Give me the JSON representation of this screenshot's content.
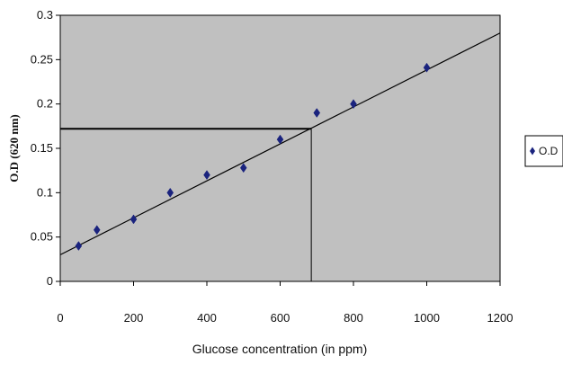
{
  "chart_data": {
    "type": "scatter",
    "xlabel": "Glucose concentration (in ppm)",
    "ylabel": "O.D (620 nm)",
    "xlim": [
      0,
      1200
    ],
    "ylim": [
      0,
      0.3
    ],
    "x_ticks": [
      "0",
      "200",
      "400",
      "600",
      "800",
      "1000",
      "1200"
    ],
    "y_ticks": [
      "0",
      "0.05",
      "0.1",
      "0.15",
      "0.2",
      "0.25",
      "0.3"
    ],
    "legend_position": "right",
    "plot_background": "#c0c0c0",
    "grid": false,
    "series": [
      {
        "name": "O.D",
        "marker": "diamond",
        "color": "#1a237e",
        "x": [
          50,
          100,
          200,
          300,
          400,
          500,
          600,
          700,
          800,
          1000
        ],
        "y": [
          0.04,
          0.058,
          0.07,
          0.1,
          0.12,
          0.128,
          0.16,
          0.19,
          0.2,
          0.241
        ]
      }
    ],
    "trendline": {
      "type": "linear",
      "x": [
        0,
        1200
      ],
      "y": [
        0.03,
        0.28
      ],
      "color": "#000000"
    },
    "reference_lines": {
      "x": 685,
      "y": 0.172
    }
  }
}
